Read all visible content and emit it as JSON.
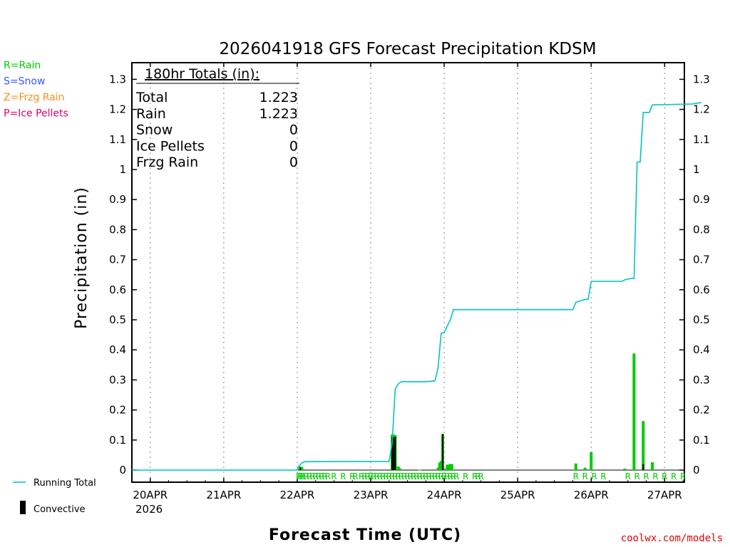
{
  "chart_data": {
    "type": "bar",
    "title": "2026041918 GFS Forecast Precipitation KDSM",
    "xlabel": "Forecast Time (UTC)",
    "ylabel": "Precipitation (in)",
    "ylim": [
      0,
      1.3
    ],
    "yticks": [
      "0",
      "0.1",
      "0.2",
      "0.3",
      "0.4",
      "0.5",
      "0.6",
      "0.7",
      "0.8",
      "0.9",
      "1",
      "1.1",
      "1.2",
      "1.3"
    ],
    "day_ticks": [
      {
        "hour": 6,
        "label": "20APR"
      },
      {
        "hour": 30,
        "label": "21APR"
      },
      {
        "hour": 54,
        "label": "22APR"
      },
      {
        "hour": 78,
        "label": "23APR"
      },
      {
        "hour": 102,
        "label": "24APR"
      },
      {
        "hour": 126,
        "label": "25APR"
      },
      {
        "hour": 150,
        "label": "26APR"
      },
      {
        "hour": 174,
        "label": "27APR"
      }
    ],
    "year_label": "2026",
    "x_range_hours": [
      0,
      186
    ],
    "series": [
      {
        "name": "Rain",
        "color": "#00cc00",
        "points": [
          [
            54.5,
            0.004
          ],
          [
            55,
            0.012
          ],
          [
            55.5,
            0.01
          ],
          [
            56,
            0.003
          ],
          [
            85,
            0.118
          ],
          [
            85.5,
            0.118
          ],
          [
            86,
            0.116
          ],
          [
            87,
            0.012
          ],
          [
            87.5,
            0.006
          ],
          [
            94,
            0.001
          ],
          [
            100,
            0.008
          ],
          [
            100.5,
            0.025
          ],
          [
            101,
            0.03
          ],
          [
            101.5,
            0.12
          ],
          [
            102,
            0.005
          ],
          [
            103,
            0.018
          ],
          [
            103.5,
            0.018
          ],
          [
            104,
            0.02
          ],
          [
            104.5,
            0.02
          ],
          [
            145,
            0.022
          ],
          [
            148,
            0.008
          ],
          [
            150,
            0.06
          ],
          [
            161,
            0.005
          ],
          [
            164,
            0.388
          ],
          [
            167,
            0.163
          ],
          [
            170,
            0.026
          ]
        ]
      },
      {
        "name": "Convective",
        "color": "#000000",
        "points": [
          [
            55,
            0.008
          ],
          [
            85,
            0.11
          ],
          [
            85.5,
            0.11
          ],
          [
            86,
            0.11
          ],
          [
            101.5,
            0.12
          ],
          [
            167,
            0.02
          ]
        ]
      },
      {
        "name": "Running Total",
        "color": "#00c4c4",
        "points": [
          [
            0,
            0
          ],
          [
            54,
            0
          ],
          [
            54.5,
            0.012
          ],
          [
            55.5,
            0.024
          ],
          [
            56.5,
            0.028
          ],
          [
            84,
            0.029
          ],
          [
            85,
            0.09
          ],
          [
            86,
            0.27
          ],
          [
            87,
            0.287
          ],
          [
            88,
            0.294
          ],
          [
            96,
            0.294
          ],
          [
            99,
            0.297
          ],
          [
            100,
            0.34
          ],
          [
            101,
            0.455
          ],
          [
            102,
            0.458
          ],
          [
            104,
            0.5
          ],
          [
            105,
            0.534
          ],
          [
            115,
            0.534
          ],
          [
            144,
            0.534
          ],
          [
            145,
            0.558
          ],
          [
            147,
            0.565
          ],
          [
            148,
            0.568
          ],
          [
            149,
            0.568
          ],
          [
            150,
            0.628
          ],
          [
            160,
            0.628
          ],
          [
            161,
            0.633
          ],
          [
            163,
            0.638
          ],
          [
            164,
            0.638
          ],
          [
            165,
            1.025
          ],
          [
            166,
            1.025
          ],
          [
            167,
            1.19
          ],
          [
            169,
            1.19
          ],
          [
            170,
            1.215
          ],
          [
            183,
            1.218
          ],
          [
            186,
            1.223
          ]
        ]
      }
    ],
    "rain_markers": {
      "letter": "R",
      "hours": [
        54.5,
        55,
        55.5,
        56,
        57,
        58,
        59,
        60,
        61,
        62,
        63,
        64,
        66,
        69,
        72,
        73,
        75,
        76,
        77,
        78,
        79,
        80,
        81,
        82,
        83,
        84,
        85,
        86,
        87,
        88,
        89,
        90,
        91,
        92,
        93,
        94,
        95,
        96,
        97,
        98,
        99,
        100,
        101,
        102,
        103,
        104,
        105,
        106,
        109,
        112,
        113,
        114,
        145,
        148,
        151,
        154,
        162,
        165,
        168,
        171,
        174,
        177,
        180,
        183,
        186
      ]
    },
    "totals": {
      "header": "180hr Totals (in):",
      "rows": [
        {
          "label": "Total",
          "value": "1.223"
        },
        {
          "label": "Rain",
          "value": "1.223"
        },
        {
          "label": "Snow",
          "value": "0"
        },
        {
          "label": "Ice Pellets",
          "value": "0"
        },
        {
          "label": "Frzg Rain",
          "value": "0"
        }
      ]
    }
  },
  "legend": {
    "items": [
      {
        "text": "R=Rain",
        "color": "#00cc00"
      },
      {
        "text": "S=Snow",
        "color": "#3355ff"
      },
      {
        "text": "Z=Frzg Rain",
        "color": "#ff8c1a"
      },
      {
        "text": "P=Ice Pellets",
        "color": "#e0006e"
      }
    ],
    "running_total": "Running Total",
    "convective": "Convective"
  },
  "footer": {
    "site": "coolwx.com/models"
  }
}
